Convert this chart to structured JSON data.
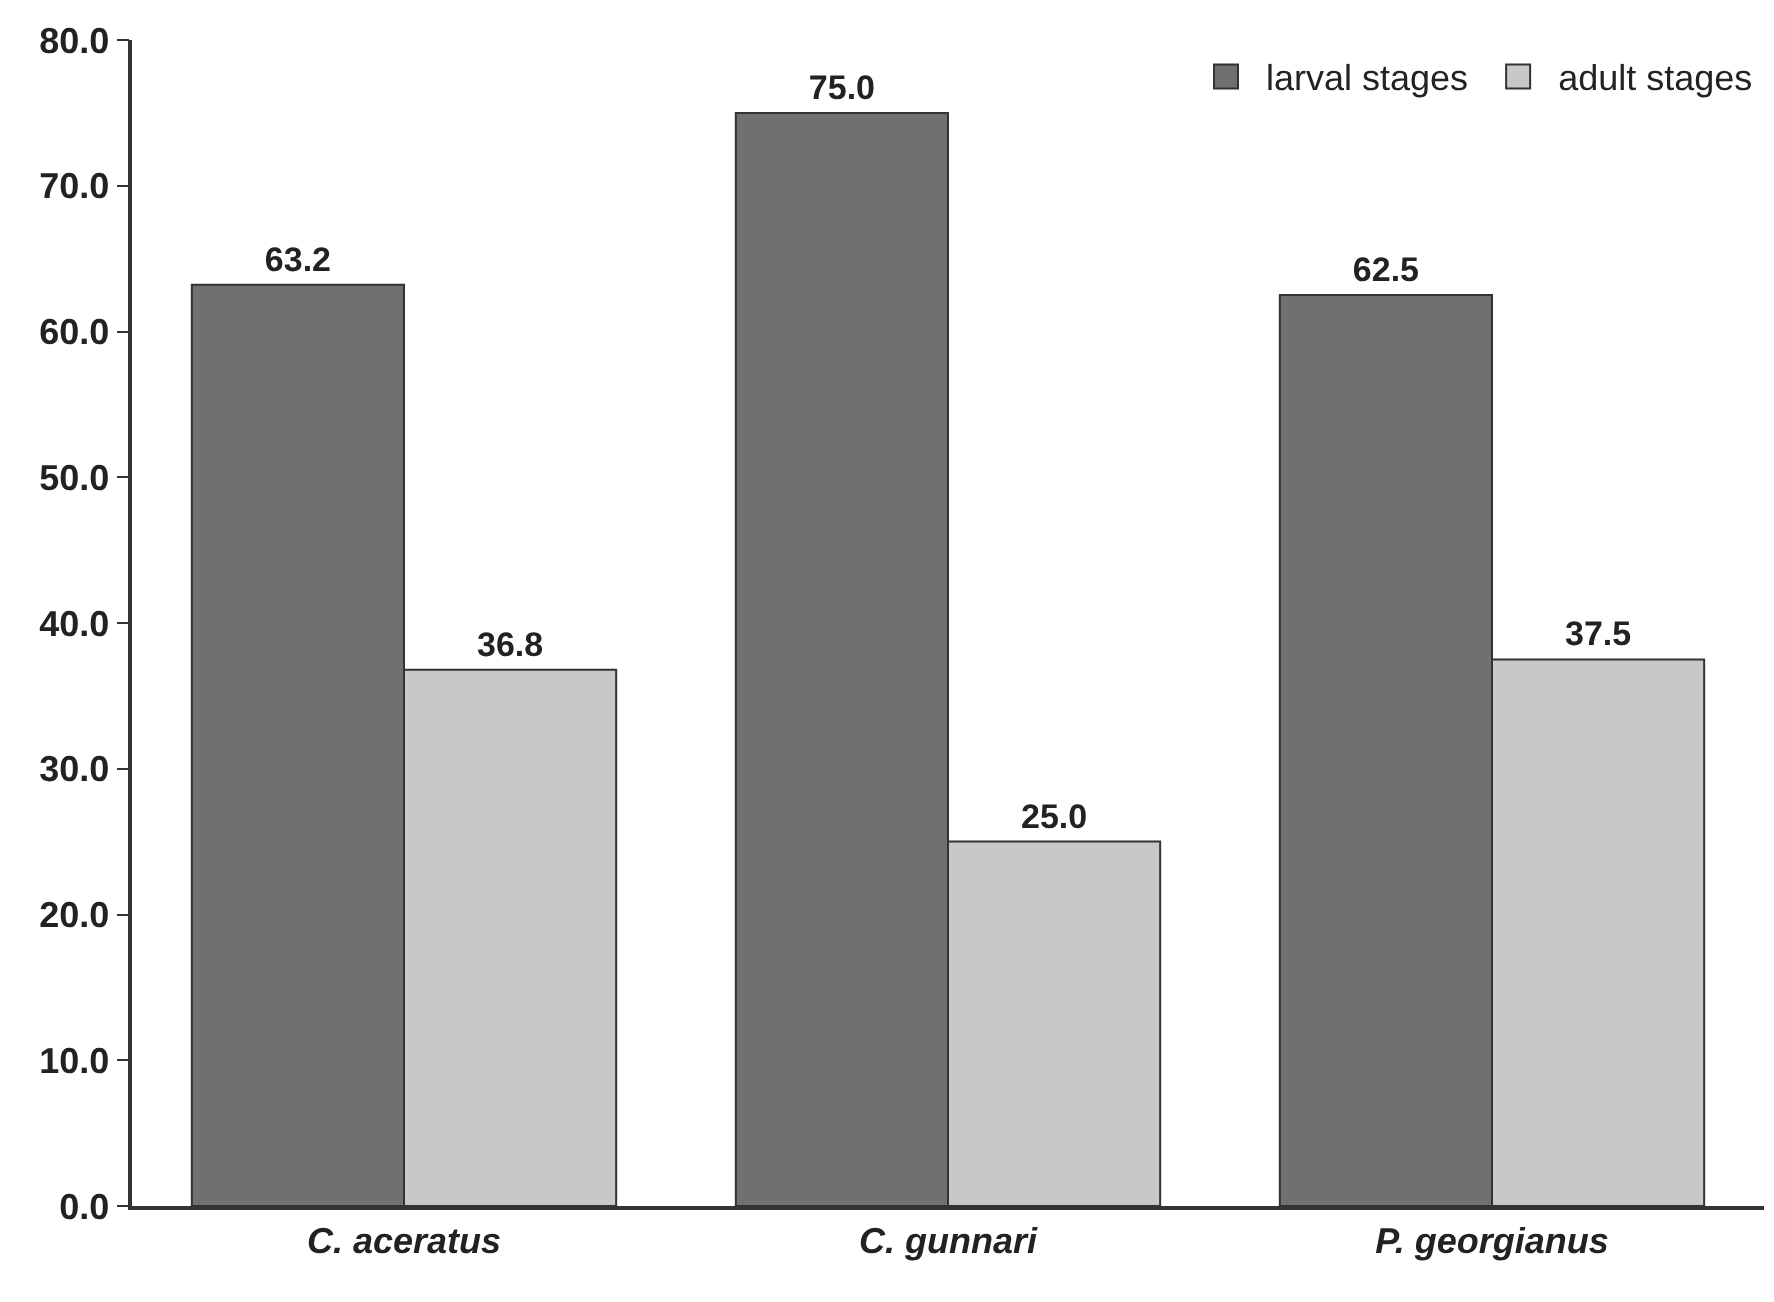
{
  "chart_data": {
    "type": "bar",
    "categories": [
      "C. aceratus",
      "C. gunnari",
      "P. georgianus"
    ],
    "series": [
      {
        "name": "larval stages",
        "color": "#707070",
        "values": [
          63.2,
          75.0,
          62.5
        ],
        "value_labels": [
          "63.2",
          "75.0",
          "62.5"
        ]
      },
      {
        "name": "adult stages",
        "color": "#c8c8c8",
        "values": [
          36.8,
          25.0,
          37.5
        ],
        "value_labels": [
          "36.8",
          "25.0",
          "37.5"
        ]
      }
    ],
    "ylim": [
      0,
      80
    ],
    "yticks": [
      {
        "value": 0,
        "label": "0.0"
      },
      {
        "value": 10,
        "label": "10.0"
      },
      {
        "value": 20,
        "label": "20.0"
      },
      {
        "value": 30,
        "label": "30.0"
      },
      {
        "value": 40,
        "label": "40.0"
      },
      {
        "value": 50,
        "label": "50.0"
      },
      {
        "value": 60,
        "label": "60.0"
      },
      {
        "value": 70,
        "label": "70.0"
      },
      {
        "value": 80,
        "label": "80.0"
      }
    ],
    "legend": "top right"
  }
}
